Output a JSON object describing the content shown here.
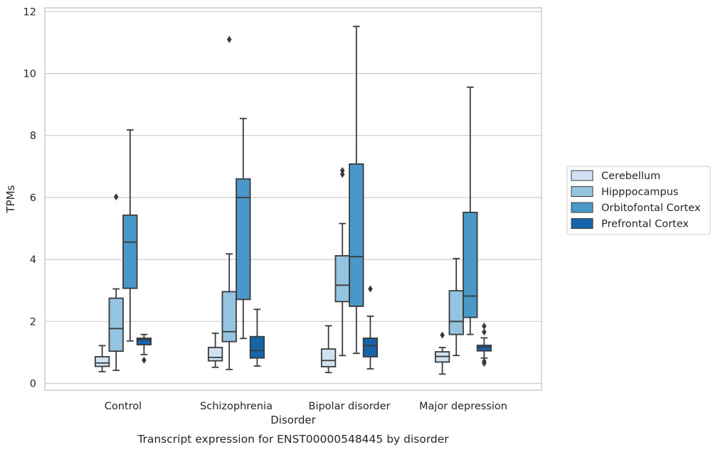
{
  "chart_data": {
    "type": "box",
    "title": "Transcript expression for ENST00000548445 by disorder",
    "xlabel": "Disorder",
    "ylabel": "TPMs",
    "ylim": [
      -0.2,
      12.1
    ],
    "yticks": [
      0,
      2,
      4,
      6,
      8,
      10,
      12
    ],
    "grid": true,
    "legend_position": "right",
    "categories": [
      "Control",
      "Schizophrenia",
      "Bipolar disorder",
      "Major depression"
    ],
    "series": [
      {
        "name": "Cerebellum",
        "color": "#d0e1f2",
        "boxes": [
          {
            "whisker_low": 0.38,
            "q1": 0.55,
            "median": 0.66,
            "q3": 0.86,
            "whisker_high": 1.22,
            "outliers": []
          },
          {
            "whisker_low": 0.52,
            "q1": 0.73,
            "median": 0.84,
            "q3": 1.16,
            "whisker_high": 1.62,
            "outliers": []
          },
          {
            "whisker_low": 0.35,
            "q1": 0.54,
            "median": 0.74,
            "q3": 1.11,
            "whisker_high": 1.86,
            "outliers": []
          },
          {
            "whisker_low": 0.3,
            "q1": 0.69,
            "median": 0.87,
            "q3": 1.02,
            "whisker_high": 1.16,
            "outliers": [
              1.56
            ]
          }
        ]
      },
      {
        "name": "Hipppocampus",
        "color": "#94c4df",
        "boxes": [
          {
            "whisker_low": 0.42,
            "q1": 1.04,
            "median": 1.77,
            "q3": 2.75,
            "whisker_high": 3.05,
            "outliers": [
              6.02
            ]
          },
          {
            "whisker_low": 0.45,
            "q1": 1.35,
            "median": 1.67,
            "q3": 2.96,
            "whisker_high": 4.18,
            "outliers": [
              11.1
            ]
          },
          {
            "whisker_low": 0.9,
            "q1": 2.64,
            "median": 3.17,
            "q3": 4.12,
            "whisker_high": 5.16,
            "outliers": [
              6.75,
              6.87
            ]
          },
          {
            "whisker_low": 0.9,
            "q1": 1.58,
            "median": 2.0,
            "q3": 2.99,
            "whisker_high": 4.03,
            "outliers": []
          }
        ]
      },
      {
        "name": "Orbitofontal Cortex",
        "color": "#4a98c9",
        "boxes": [
          {
            "whisker_low": 1.37,
            "q1": 3.07,
            "median": 4.56,
            "q3": 5.43,
            "whisker_high": 8.18,
            "outliers": []
          },
          {
            "whisker_low": 1.45,
            "q1": 2.71,
            "median": 6.0,
            "q3": 6.6,
            "whisker_high": 8.55,
            "outliers": []
          },
          {
            "whisker_low": 0.97,
            "q1": 2.49,
            "median": 4.09,
            "q3": 7.08,
            "whisker_high": 11.52,
            "outliers": []
          },
          {
            "whisker_low": 1.58,
            "q1": 2.13,
            "median": 2.82,
            "q3": 5.52,
            "whisker_high": 9.56,
            "outliers": []
          }
        ]
      },
      {
        "name": "Prefrontal Cortex",
        "color": "#1764ab",
        "boxes": [
          {
            "whisker_low": 0.93,
            "q1": 1.25,
            "median": 1.41,
            "q3": 1.46,
            "whisker_high": 1.58,
            "outliers": [
              0.75
            ]
          },
          {
            "whisker_low": 0.56,
            "q1": 0.82,
            "median": 1.06,
            "q3": 1.51,
            "whisker_high": 2.39,
            "outliers": []
          },
          {
            "whisker_low": 0.47,
            "q1": 0.86,
            "median": 1.22,
            "q3": 1.46,
            "whisker_high": 2.17,
            "outliers": [
              3.05
            ]
          },
          {
            "whisker_low": 0.82,
            "q1": 1.05,
            "median": 1.17,
            "q3": 1.23,
            "whisker_high": 1.47,
            "outliers": [
              0.65,
              0.71,
              1.66,
              1.85
            ]
          }
        ]
      }
    ]
  }
}
